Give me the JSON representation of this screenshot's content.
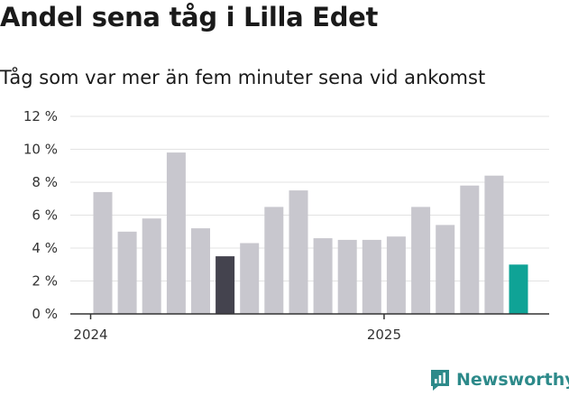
{
  "title": "Andel sena tåg i Lilla Edet",
  "subtitle": "Tåg som var mer än fem minuter sena vid ankomst",
  "brand": {
    "name": "Newsworthy",
    "icon": "newsworthy-logo-icon",
    "color": "#2d8a8a"
  },
  "chart_data": {
    "type": "bar",
    "title": "Andel sena tåg i Lilla Edet",
    "subtitle": "Tåg som var mer än fem minuter sena vid ankomst",
    "xlabel": "",
    "ylabel": "",
    "ylim": [
      0,
      12
    ],
    "yticks": [
      "0 %",
      "2 %",
      "4 %",
      "6 %",
      "8 %",
      "10 %",
      "12 %"
    ],
    "xticks": [
      {
        "label": "2024",
        "at_index": 0
      },
      {
        "label": "2025",
        "at_index": 12
      }
    ],
    "grid": true,
    "legend": "none",
    "categories": [
      "2024-01",
      "2024-02",
      "2024-03",
      "2024-04",
      "2024-05",
      "2024-06",
      "2024-07",
      "2024-08",
      "2024-09",
      "2024-10",
      "2024-11",
      "2024-12",
      "2025-01",
      "2025-02",
      "2025-03",
      "2025-04",
      "2025-05",
      "2025-06"
    ],
    "values": [
      7.4,
      5.0,
      5.8,
      9.8,
      5.2,
      3.5,
      4.3,
      6.5,
      7.5,
      4.6,
      4.5,
      4.5,
      4.7,
      6.5,
      5.4,
      7.8,
      8.4,
      3.0
    ],
    "colors": {
      "default": "#c8c7ce",
      "highlight_previous_year": "#44434e",
      "highlight_latest": "#0fa396"
    },
    "highlights": {
      "2024-06": "highlight_previous_year",
      "2025-06": "highlight_latest"
    }
  }
}
